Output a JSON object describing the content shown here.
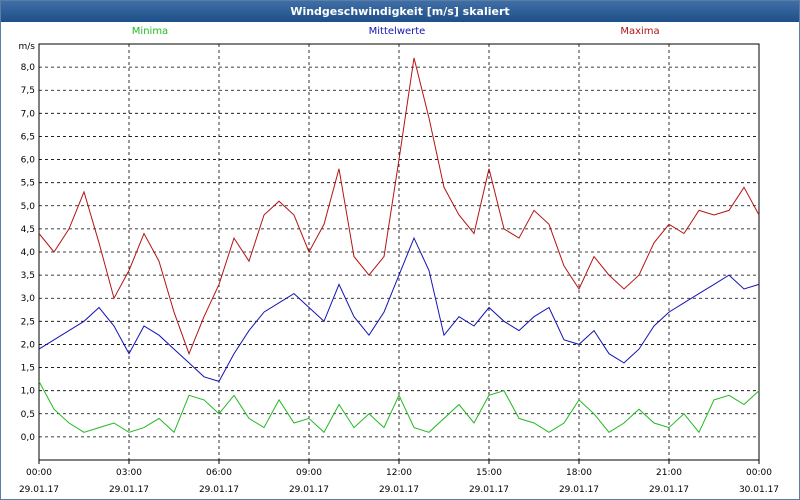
{
  "window": {
    "title": "Windgeschwindigkeit [m/s] skaliert"
  },
  "colors": {
    "minima": "#22b822",
    "mittel": "#1414b4",
    "maxima": "#b41414",
    "grid": "#000000"
  },
  "chart_data": {
    "type": "line",
    "title": "Windgeschwindigkeit [m/s] skaliert",
    "ylabel": "m/s",
    "xlabel": "",
    "ylim": [
      -0.5,
      8.5
    ],
    "yticks": [
      "0,0",
      "0,5",
      "1,0",
      "1,5",
      "2,0",
      "2,5",
      "3,0",
      "3,5",
      "4,0",
      "4,5",
      "5,0",
      "5,5",
      "6,0",
      "6,5",
      "7,0",
      "7,5",
      "8,0"
    ],
    "xlim_hours": [
      0,
      72
    ],
    "xticks": [
      {
        "time": "00:00",
        "date": "29.01.17"
      },
      {
        "time": "03:00",
        "date": "29.01.17"
      },
      {
        "time": "06:00",
        "date": "29.01.17"
      },
      {
        "time": "09:00",
        "date": "29.01.17"
      },
      {
        "time": "12:00",
        "date": "29.01.17"
      },
      {
        "time": "15:00",
        "date": "29.01.17"
      },
      {
        "time": "18:00",
        "date": "29.01.17"
      },
      {
        "time": "21:00",
        "date": "29.01.17"
      },
      {
        "time": "00:00",
        "date": "30.01.17"
      }
    ],
    "grid": true,
    "legend_position": "top",
    "series": [
      {
        "name": "Minima",
        "color": "#22b822",
        "x": [
          0,
          0.5,
          1,
          1.5,
          2,
          2.5,
          3,
          3.5,
          4,
          4.5,
          5,
          5.5,
          6,
          6.5,
          7,
          7.5,
          8,
          8.5,
          9,
          9.5,
          10,
          10.5,
          11,
          11.5,
          12,
          12.5,
          13,
          13.5,
          14,
          14.5,
          15,
          15.5,
          16,
          16.5,
          17,
          17.5,
          18,
          18.5,
          19,
          19.5,
          20,
          20.5,
          21,
          21.5,
          22,
          22.5,
          23,
          23.5,
          24
        ],
        "y": [
          1.2,
          0.6,
          0.3,
          0.1,
          0.2,
          0.3,
          0.1,
          0.2,
          0.4,
          0.1,
          0.9,
          0.8,
          0.5,
          0.9,
          0.4,
          0.2,
          0.8,
          0.3,
          0.4,
          0.1,
          0.7,
          0.2,
          0.5,
          0.2,
          0.9,
          0.2,
          0.1,
          0.4,
          0.7,
          0.3,
          0.9,
          1.0,
          0.4,
          0.3,
          0.1,
          0.3,
          0.8,
          0.5,
          0.1,
          0.3,
          0.6,
          0.3,
          0.2,
          0.5,
          0.1,
          0.8,
          0.9,
          0.7,
          1.0
        ]
      },
      {
        "name": "Mittelwerte",
        "color": "#1414b4",
        "x": [
          0,
          0.5,
          1,
          1.5,
          2,
          2.5,
          3,
          3.5,
          4,
          4.5,
          5,
          5.5,
          6,
          6.5,
          7,
          7.5,
          8,
          8.5,
          9,
          9.5,
          10,
          10.5,
          11,
          11.5,
          12,
          12.5,
          13,
          13.5,
          14,
          14.5,
          15,
          15.5,
          16,
          16.5,
          17,
          17.5,
          18,
          18.5,
          19,
          19.5,
          20,
          20.5,
          21,
          21.5,
          22,
          22.5,
          23,
          23.5,
          24
        ],
        "y": [
          1.9,
          2.1,
          2.3,
          2.5,
          2.8,
          2.4,
          1.8,
          2.4,
          2.2,
          1.9,
          1.6,
          1.3,
          1.2,
          1.8,
          2.3,
          2.7,
          2.9,
          3.1,
          2.8,
          2.5,
          3.3,
          2.6,
          2.2,
          2.7,
          3.5,
          4.3,
          3.6,
          2.2,
          2.6,
          2.4,
          2.8,
          2.5,
          2.3,
          2.6,
          2.8,
          2.1,
          2.0,
          2.3,
          1.8,
          1.6,
          1.9,
          2.4,
          2.7,
          2.9,
          3.1,
          3.3,
          3.5,
          3.2,
          3.3
        ]
      },
      {
        "name": "Maxima",
        "color": "#b41414",
        "x": [
          0,
          0.5,
          1,
          1.5,
          2,
          2.5,
          3,
          3.5,
          4,
          4.5,
          5,
          5.5,
          6,
          6.5,
          7,
          7.5,
          8,
          8.5,
          9,
          9.5,
          10,
          10.5,
          11,
          11.5,
          12,
          12.5,
          13,
          13.5,
          14,
          14.5,
          15,
          15.5,
          16,
          16.5,
          17,
          17.5,
          18,
          18.5,
          19,
          19.5,
          20,
          20.5,
          21,
          21.5,
          22,
          22.5,
          23,
          23.5,
          24
        ],
        "y": [
          4.4,
          4.0,
          4.5,
          5.3,
          4.2,
          3.0,
          3.6,
          4.4,
          3.8,
          2.7,
          1.8,
          2.6,
          3.3,
          4.3,
          3.8,
          4.8,
          5.1,
          4.8,
          4.0,
          4.6,
          5.8,
          3.9,
          3.5,
          3.9,
          6.0,
          8.2,
          6.9,
          5.4,
          4.8,
          4.4,
          5.8,
          4.5,
          4.3,
          4.9,
          4.6,
          3.7,
          3.2,
          3.9,
          3.5,
          3.2,
          3.5,
          4.2,
          4.6,
          4.4,
          4.9,
          4.8,
          4.9,
          5.4,
          4.8
        ]
      }
    ]
  }
}
